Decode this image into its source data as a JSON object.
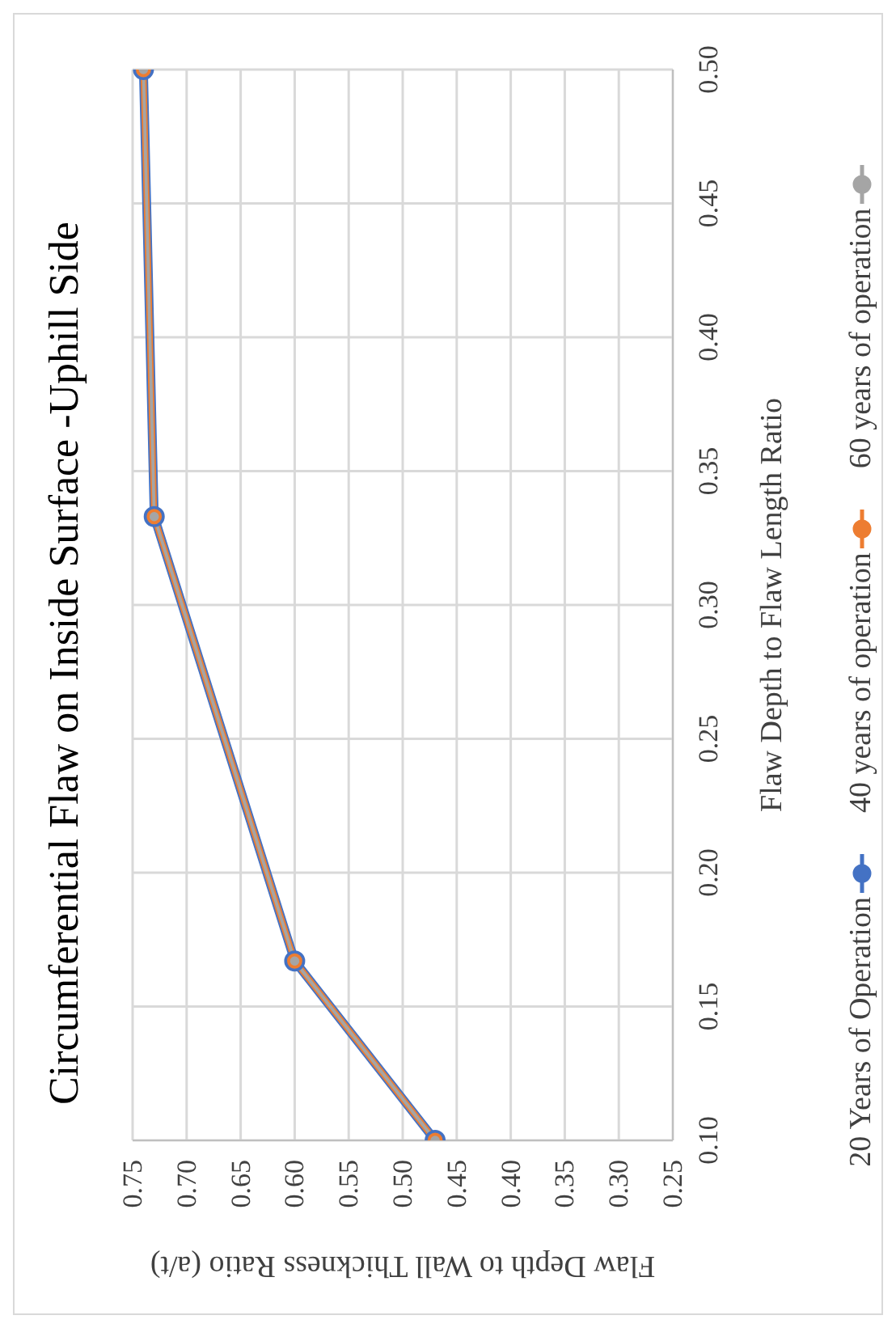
{
  "chart_data": {
    "type": "line",
    "title": "Circumferential Flaw on Inside Surface -Uphill Side",
    "xlabel": "Flaw Depth to Wall Thickness Ratio (a/t)",
    "ylabel": "Flaw Depth to Flaw Length Ratio",
    "series": [
      {
        "name": "20 Years of Operation",
        "color": "#4472c4",
        "x": [
          0.47,
          0.6,
          0.73,
          0.74
        ],
        "values": [
          0.1,
          0.167,
          0.333,
          0.5
        ]
      },
      {
        "name": "40 years of operation",
        "color": "#ed7d31",
        "x": [
          0.47,
          0.6,
          0.73,
          0.74
        ],
        "values": [
          0.1,
          0.167,
          0.333,
          0.5
        ]
      },
      {
        "name": "60 years of operation",
        "color": "#a5a5a5",
        "x": [
          0.47,
          0.6,
          0.73,
          0.74
        ],
        "values": [
          0.1,
          0.167,
          0.333,
          0.5
        ]
      }
    ],
    "xlim": [
      0.75,
      0.25
    ],
    "xticks": [
      0.75,
      {
        "value": 0.7,
        "label": "0.70"
      },
      0.65,
      {
        "value": 0.6,
        "label": "0.60"
      },
      0.55,
      {
        "value": 0.5,
        "label": "0.50"
      },
      0.45,
      {
        "value": 0.4,
        "label": "0.40"
      },
      0.35,
      {
        "value": 0.3,
        "label": "0.30"
      },
      0.25
    ],
    "ylim": [
      0.1,
      0.5
    ],
    "yticks": [
      {
        "value": 0.1,
        "label": "0.10"
      },
      0.15,
      {
        "value": 0.2,
        "label": "0.20"
      },
      0.25,
      {
        "value": 0.3,
        "label": "0.30"
      },
      0.35,
      {
        "value": 0.4,
        "label": "0.40"
      },
      0.45,
      {
        "value": 0.5,
        "label": "0.50"
      }
    ],
    "grid": true,
    "legend": "right",
    "marker": "circle",
    "line_style": "solid"
  }
}
